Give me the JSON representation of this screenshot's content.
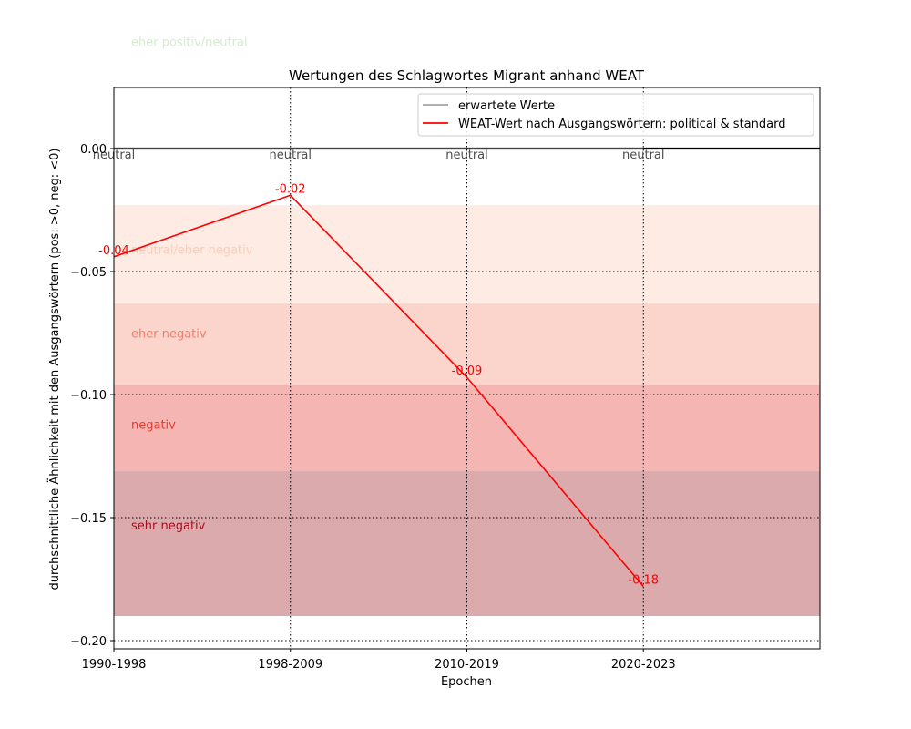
{
  "chart_data": {
    "type": "line",
    "title": "Wertungen des Schlagwortes Migrant anhand WEAT",
    "xlabel": "Epochen",
    "ylabel": "durchschnittliche Ähnlichkeit mit den Ausgangswörtern (pos: >0, neg: <0)",
    "categories": [
      "1990-1998",
      "1998-2009",
      "2010-2019",
      "2020-2023"
    ],
    "xlim": [
      0,
      4
    ],
    "ylim": [
      -0.203,
      0.0245
    ],
    "yticks": [
      0.0,
      -0.05,
      -0.1,
      -0.15,
      -0.2
    ],
    "ytick_labels": [
      "0.00",
      "−0.05",
      "−0.10",
      "−0.15",
      "−0.20"
    ],
    "grid": true,
    "legend_position": "top-right",
    "zero_line": 0,
    "series": [
      {
        "name": "erwartete Werte",
        "color": "#808080",
        "values": [
          0,
          0,
          0,
          0
        ],
        "point_labels": [
          "neutral",
          "neutral",
          "neutral",
          "neutral"
        ]
      },
      {
        "name": "WEAT-Wert nach Ausgangswörtern: political & standard",
        "color": "#ff0000",
        "values": [
          -0.044,
          -0.019,
          -0.093,
          -0.178
        ],
        "point_labels": [
          "-0.04",
          "-0.02",
          "-0.09",
          "-0.18"
        ]
      }
    ],
    "bands": [
      {
        "label": "eher positiv/neutral",
        "from": 0.024,
        "to": 0.0245,
        "fill": "#e8f5e3",
        "text_color": "#d2edc9",
        "label_y": 0.0435
      },
      {
        "label": "neutral/eher negativ",
        "from": -0.063,
        "to": -0.023,
        "fill": "#fdebe4",
        "text_color": "#f9cdb8",
        "label_y": -0.041
      },
      {
        "label": "eher negativ",
        "from": -0.096,
        "to": -0.063,
        "fill": "#fbd4cb",
        "text_color": "#f47f6c",
        "label_y": -0.075
      },
      {
        "label": "negativ",
        "from": -0.131,
        "to": -0.096,
        "fill": "#f4b5b3",
        "text_color": "#e23b2e",
        "label_y": -0.112
      },
      {
        "label": "sehr negativ",
        "from": -0.19,
        "to": -0.131,
        "fill": "#dbaaad",
        "text_color": "#a6101e",
        "label_y": -0.153
      }
    ]
  }
}
